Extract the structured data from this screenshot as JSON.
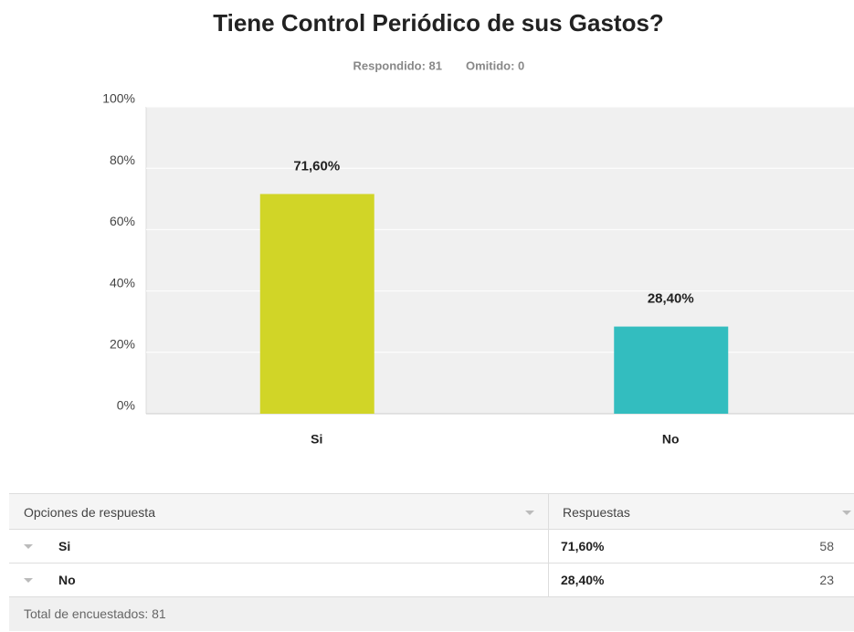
{
  "chart_data": {
    "type": "bar",
    "title": "Tiene Control Periódico de sus Gastos?",
    "answered": "Respondido: 81",
    "skipped": "Omitido: 0",
    "categories": [
      "Si",
      "No"
    ],
    "values": [
      71.6,
      28.4
    ],
    "value_labels": [
      "71,60%",
      "28,40%"
    ],
    "colors": [
      "#d1d527",
      "#33bdbf"
    ],
    "ylim": [
      0,
      100
    ],
    "yticks": [
      {
        "value": 0,
        "label": "0%"
      },
      {
        "value": 20,
        "label": "20%"
      },
      {
        "value": 40,
        "label": "40%"
      },
      {
        "value": 60,
        "label": "60%"
      },
      {
        "value": 80,
        "label": "80%"
      },
      {
        "value": 100,
        "label": "100%"
      }
    ],
    "grid": true
  },
  "table": {
    "header": [
      "Opciones de respuesta",
      "Respuestas"
    ],
    "rows": [
      [
        "Si",
        "71,60%",
        58
      ],
      [
        "No",
        "28,40%",
        23
      ]
    ],
    "footer": "Total de encuestados: 81"
  }
}
